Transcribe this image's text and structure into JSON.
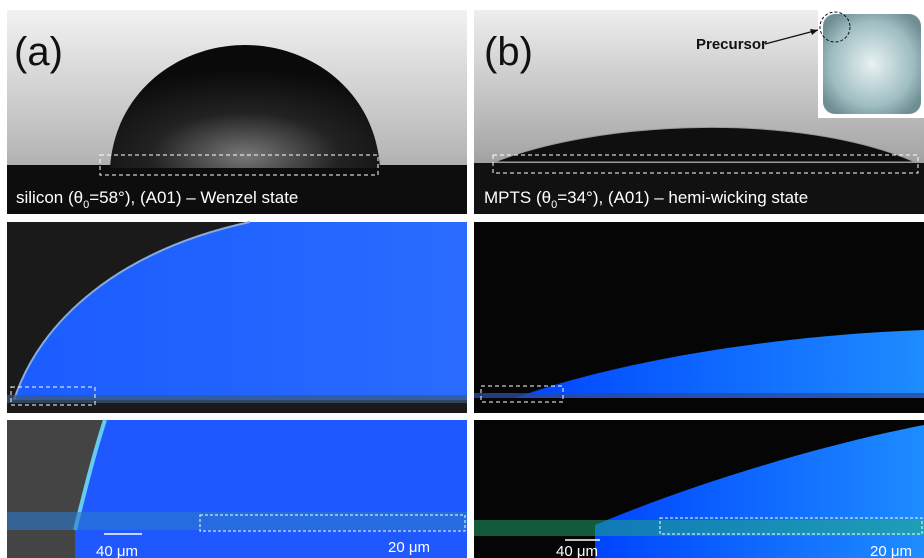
{
  "panels": [
    {
      "label": "(a)",
      "caption": {
        "pre": "silicon (θ",
        "sub": "0",
        "post": "=58°), (A01)  – Wenzel state"
      },
      "scale_left": "40 μm",
      "scale_right": "20 μm"
    },
    {
      "label": "(b)",
      "caption": {
        "pre": "MPTS (θ",
        "sub": "0",
        "post": "=34°), (A01)  – hemi-wicking state"
      },
      "inset_label": "Precursor",
      "scale_left": "40 μm",
      "scale_right": "20 μm"
    }
  ]
}
